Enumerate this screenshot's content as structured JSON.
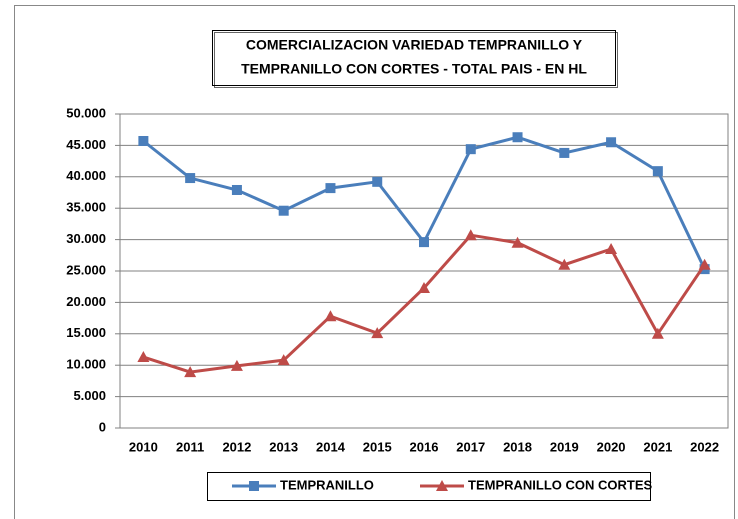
{
  "chart_data": {
    "type": "line",
    "title": [
      "COMERCIALIZACION VARIEDAD TEMPRANILLO  Y",
      "TEMPRANILLO CON CORTES - TOTAL PAIS - EN HL"
    ],
    "categories": [
      "2010",
      "2011",
      "2012",
      "2013",
      "2014",
      "2015",
      "2016",
      "2017",
      "2018",
      "2019",
      "2020",
      "2021",
      "2022"
    ],
    "series": [
      {
        "name": "TEMPRANILLO",
        "color": "#4a7ebb",
        "marker": "square",
        "values": [
          45700,
          39800,
          37900,
          34600,
          38200,
          39200,
          29600,
          44400,
          46300,
          43800,
          45500,
          40900,
          25300
        ]
      },
      {
        "name": "TEMPRANILLO CON CORTES",
        "color": "#be4b48",
        "marker": "triangle",
        "values": [
          11300,
          8900,
          9900,
          10800,
          17800,
          15100,
          22300,
          30700,
          29500,
          26000,
          28500,
          15000,
          26000
        ]
      }
    ],
    "ylim": [
      0,
      50000
    ],
    "yticks": [
      0,
      {
        "value": 5000,
        "label": "5.000"
      },
      {
        "value": 10000,
        "label": "10.000"
      },
      {
        "value": 15000,
        "label": "15.000"
      },
      {
        "value": 20000,
        "label": "20.000"
      },
      {
        "value": 25000,
        "label": "25.000"
      },
      {
        "value": 30000,
        "label": "30.000"
      },
      {
        "value": 35000,
        "label": "35.000"
      },
      {
        "value": 40000,
        "label": "40.000"
      },
      {
        "value": 45000,
        "label": "45.000"
      },
      {
        "value": 50000,
        "label": "50.000"
      }
    ],
    "grid": true,
    "legend": "bottom"
  }
}
